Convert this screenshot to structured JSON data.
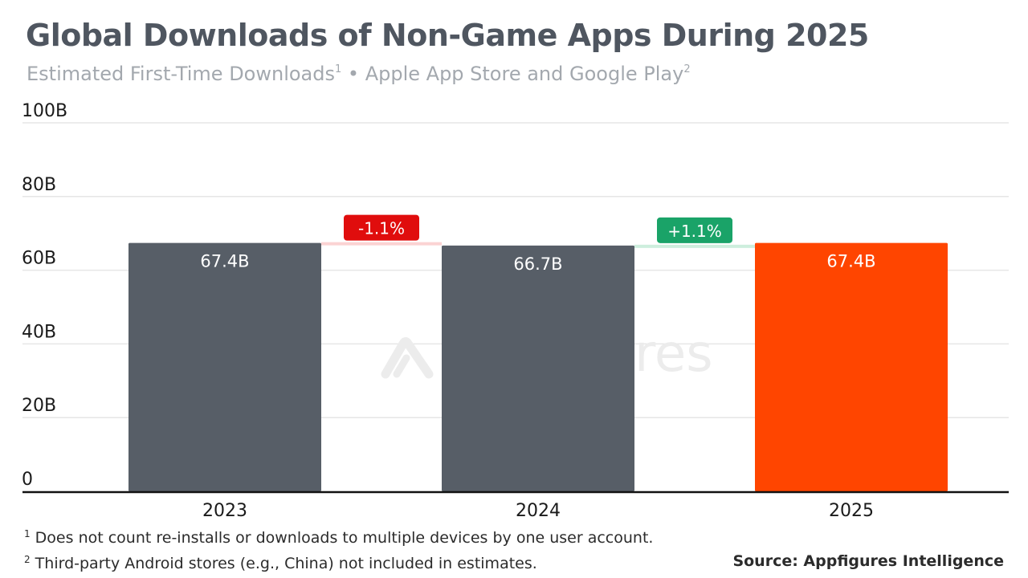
{
  "title": "Global Downloads of Non-Game Apps During 2025",
  "subtitle": {
    "part1": "Estimated First-Time Downloads",
    "sup1": "1",
    "part2": " • Apple App Store and Google Play",
    "sup2": "2"
  },
  "watermark": "appfigures",
  "footnotes": [
    {
      "marker": "1",
      "text": " Does not count re-installs or downloads to multiple devices by one user account."
    },
    {
      "marker": "2",
      "text": " Third-party Android stores (e.g., China) not included in estimates."
    }
  ],
  "source": "Source: Appfigures Intelligence",
  "colors": {
    "bar_default": "#575e67",
    "bar_highlight": "#ff4500",
    "negative": "#e00d0d",
    "positive": "#1aa368",
    "grid": "#e6e6e6",
    "axis": "#111111"
  },
  "chart_data": {
    "type": "bar",
    "categories": [
      "2023",
      "2024",
      "2025"
    ],
    "values": [
      67.4,
      66.7,
      67.4
    ],
    "value_labels": [
      "67.4B",
      "66.7B",
      "67.4B"
    ],
    "highlight_index": 2,
    "ylim": [
      0,
      100
    ],
    "yticks": [
      {
        "value": 0,
        "label": "0"
      },
      {
        "value": 20,
        "label": "20B"
      },
      {
        "value": 40,
        "label": "40B"
      },
      {
        "value": 60,
        "label": "60B"
      },
      {
        "value": 80,
        "label": "80B"
      },
      {
        "value": 100,
        "label": "100B"
      }
    ],
    "changes": [
      {
        "label": "-1.1%",
        "direction": "down"
      },
      {
        "label": "+1.1%",
        "direction": "up"
      }
    ],
    "grid": true
  }
}
